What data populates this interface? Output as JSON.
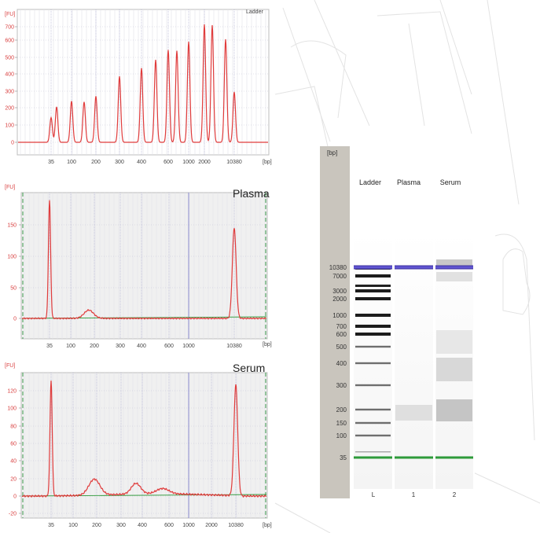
{
  "colors": {
    "trace": "#e03c3c",
    "tick_text": "#d94040",
    "baseline": "#2e9a3a",
    "grid_blue": "#6e6ec8",
    "gel_marker_purple": "#5a4fc8",
    "gel_marker_green": "#2e9a3a"
  },
  "chart_data": [
    {
      "type": "line",
      "title": "Ladder",
      "ylabel": "[FU]",
      "xlabel": "[bp]",
      "yticks": [
        "0",
        "100",
        "200",
        "300",
        "400",
        "500",
        "600",
        "700"
      ],
      "xticks": [
        "35",
        "100",
        "200",
        "300",
        "400",
        "600",
        "1000",
        "2000",
        "10380"
      ],
      "ylim": [
        -30,
        760
      ],
      "grid": true,
      "series": [
        {
          "peaks": [
            {
              "x": "35",
              "y": 150
            },
            {
              "x": "50",
              "y": 215
            },
            {
              "x": "100",
              "y": 250
            },
            {
              "x": "150",
              "y": 245
            },
            {
              "x": "200",
              "y": 280
            },
            {
              "x": "300",
              "y": 400
            },
            {
              "x": "400",
              "y": 450
            },
            {
              "x": "500",
              "y": 500
            },
            {
              "x": "600",
              "y": 560
            },
            {
              "x": "700",
              "y": 555
            },
            {
              "x": "1000",
              "y": 610
            },
            {
              "x": "2000",
              "y": 715
            },
            {
              "x": "3000",
              "y": 710
            },
            {
              "x": "7000",
              "y": 625
            },
            {
              "x": "10380",
              "y": 305
            }
          ]
        }
      ]
    },
    {
      "type": "line",
      "title": "Plasma",
      "ylabel": "[FU]",
      "xlabel": "[bp]",
      "yticks": [
        "0",
        "50",
        "100",
        "150"
      ],
      "xticks": [
        "35",
        "100",
        "200",
        "300",
        "400",
        "600",
        "1000",
        "10380"
      ],
      "ylim": [
        -10,
        190
      ],
      "grid": true,
      "series": [
        {
          "peaks": [
            {
              "x": "35",
              "y": 185
            },
            {
              "x": "~170",
              "y": 13
            },
            {
              "x": "10380",
              "y": 142
            }
          ]
        }
      ]
    },
    {
      "type": "line",
      "title": "Serum",
      "ylabel": "[FU]",
      "xlabel": "[bp]",
      "yticks": [
        "-20",
        "0",
        "20",
        "40",
        "60",
        "80",
        "100",
        "120"
      ],
      "xticks": [
        "35",
        "100",
        "200",
        "300",
        "400",
        "600",
        "1000",
        "2000",
        "10380"
      ],
      "ylim": [
        -25,
        135
      ],
      "grid": true,
      "series": [
        {
          "peaks": [
            {
              "x": "35",
              "y": 130
            },
            {
              "x": "~180",
              "y": 18
            },
            {
              "x": "~360",
              "y": 12
            },
            {
              "x": "~550",
              "y": 6
            },
            {
              "x": "10380",
              "y": 125
            }
          ]
        }
      ]
    }
  ],
  "gel": {
    "axis_unit": "[bp]",
    "size_labels": [
      "10380",
      "7000",
      "3000",
      "2000",
      "1000",
      "700",
      "600",
      "500",
      "400",
      "300",
      "200",
      "150",
      "100",
      "35"
    ],
    "lanes": [
      {
        "header": "Ladder",
        "footer": "L"
      },
      {
        "header": "Plasma",
        "footer": "1"
      },
      {
        "header": "Serum",
        "footer": "2"
      }
    ]
  }
}
